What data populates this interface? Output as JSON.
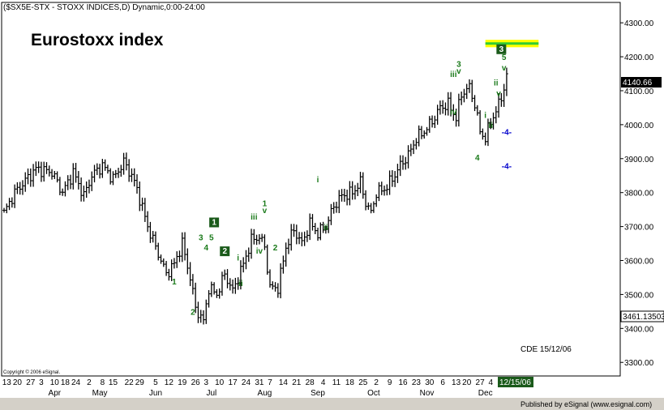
{
  "header": "($SX5E-STX - STOXX INDICES,D) Dynamic,0:00-24:00",
  "title": "Eurostoxx index",
  "annotation": "CDE 15/12/06",
  "copyright": "Copyright © 2006 eSignal.",
  "footer": "Published by eSignal (www.esignal.com)",
  "last_price_label": "4140.66",
  "cursor_price_label": "3461.13503",
  "current_date_label": "12/15/06",
  "colors": {
    "bars": "#000000",
    "wave": "#1a7a1a",
    "target": "#0000cc",
    "box": "#ffff00",
    "box_band": "#33cc33",
    "date_box": "#1a5a1a"
  },
  "chart_data": {
    "type": "ohlc",
    "ylim": [
      3260,
      4360
    ],
    "yticks": [
      3300,
      3400,
      3500,
      3600,
      3700,
      3800,
      3900,
      4000,
      4100,
      4200,
      4300
    ],
    "ytick_labels": [
      "3300.00",
      "3400.00",
      "3500.00",
      "3600.00",
      "3700.00",
      "3800.00",
      "3900.00",
      "4000.00",
      "4100.00",
      "4200.00",
      "4300.00"
    ],
    "bar_count": 190,
    "close_anchors": [
      [
        0,
        3740
      ],
      [
        4,
        3800
      ],
      [
        12,
        3870
      ],
      [
        18,
        3860
      ],
      [
        22,
        3800
      ],
      [
        26,
        3860
      ],
      [
        30,
        3790
      ],
      [
        33,
        3850
      ],
      [
        37,
        3880
      ],
      [
        41,
        3840
      ],
      [
        45,
        3890
      ],
      [
        48,
        3850
      ],
      [
        50,
        3810
      ],
      [
        54,
        3700
      ],
      [
        57,
        3640
      ],
      [
        61,
        3560
      ],
      [
        64,
        3590
      ],
      [
        67,
        3650
      ],
      [
        70,
        3550
      ],
      [
        72,
        3460
      ],
      [
        75,
        3420
      ],
      [
        77,
        3520
      ],
      [
        80,
        3500
      ],
      [
        83,
        3560
      ],
      [
        86,
        3510
      ],
      [
        90,
        3590
      ],
      [
        93,
        3660
      ],
      [
        96,
        3670
      ],
      [
        98,
        3640
      ],
      [
        100,
        3520
      ],
      [
        103,
        3520
      ],
      [
        106,
        3640
      ],
      [
        109,
        3690
      ],
      [
        112,
        3650
      ],
      [
        115,
        3710
      ],
      [
        118,
        3680
      ],
      [
        121,
        3700
      ],
      [
        124,
        3760
      ],
      [
        127,
        3790
      ],
      [
        131,
        3800
      ],
      [
        134,
        3830
      ],
      [
        136,
        3770
      ],
      [
        138,
        3740
      ],
      [
        140,
        3800
      ],
      [
        143,
        3810
      ],
      [
        146,
        3840
      ],
      [
        149,
        3880
      ],
      [
        152,
        3910
      ],
      [
        155,
        3960
      ],
      [
        158,
        3980
      ],
      [
        161,
        4010
      ],
      [
        164,
        4050
      ],
      [
        167,
        4060
      ],
      [
        170,
        4020
      ],
      [
        172,
        4090
      ],
      [
        175,
        4110
      ],
      [
        177,
        4060
      ],
      [
        179,
        3980
      ],
      [
        181,
        3960
      ],
      [
        183,
        4010
      ],
      [
        185,
        4040
      ],
      [
        187,
        4080
      ],
      [
        189,
        4140
      ]
    ],
    "x_tick_labels": [
      {
        "bar": 1,
        "label": "13"
      },
      {
        "bar": 5,
        "label": "20"
      },
      {
        "bar": 10,
        "label": "27"
      },
      {
        "bar": 14,
        "label": "3"
      },
      {
        "bar": 19,
        "label": "10"
      },
      {
        "bar": 23,
        "label": "18"
      },
      {
        "bar": 27,
        "label": "24"
      },
      {
        "bar": 32,
        "label": "2"
      },
      {
        "bar": 37,
        "label": "8"
      },
      {
        "bar": 41,
        "label": "15"
      },
      {
        "bar": 47,
        "label": "22"
      },
      {
        "bar": 51,
        "label": "29"
      },
      {
        "bar": 57,
        "label": "5"
      },
      {
        "bar": 62,
        "label": "12"
      },
      {
        "bar": 67,
        "label": "19"
      },
      {
        "bar": 72,
        "label": "26"
      },
      {
        "bar": 76,
        "label": "3"
      },
      {
        "bar": 81,
        "label": "10"
      },
      {
        "bar": 86,
        "label": "17"
      },
      {
        "bar": 91,
        "label": "24"
      },
      {
        "bar": 96,
        "label": "31"
      },
      {
        "bar": 100,
        "label": "7"
      },
      {
        "bar": 105,
        "label": "14"
      },
      {
        "bar": 110,
        "label": "21"
      },
      {
        "bar": 115,
        "label": "28"
      },
      {
        "bar": 120,
        "label": "4"
      },
      {
        "bar": 125,
        "label": "11"
      },
      {
        "bar": 130,
        "label": "18"
      },
      {
        "bar": 135,
        "label": "25"
      },
      {
        "bar": 140,
        "label": "2"
      },
      {
        "bar": 145,
        "label": "9"
      },
      {
        "bar": 150,
        "label": "16"
      },
      {
        "bar": 155,
        "label": "23"
      },
      {
        "bar": 160,
        "label": "30"
      },
      {
        "bar": 165,
        "label": "6"
      },
      {
        "bar": 170,
        "label": "13"
      },
      {
        "bar": 174,
        "label": "20"
      },
      {
        "bar": 179,
        "label": "27"
      },
      {
        "bar": 183,
        "label": "4"
      }
    ],
    "month_labels": [
      {
        "bar": 19,
        "label": "Apr"
      },
      {
        "bar": 36,
        "label": "May"
      },
      {
        "bar": 57,
        "label": "Jun"
      },
      {
        "bar": 78,
        "label": "Jul"
      },
      {
        "bar": 98,
        "label": "Aug"
      },
      {
        "bar": 118,
        "label": "Sep"
      },
      {
        "bar": 139,
        "label": "Oct"
      },
      {
        "bar": 159,
        "label": "Nov"
      },
      {
        "bar": 181,
        "label": "Dec"
      }
    ],
    "wave_labels": [
      {
        "bar": 64,
        "price": 3530,
        "text": "1"
      },
      {
        "bar": 71,
        "price": 3440,
        "text": "2"
      },
      {
        "bar": 74,
        "price": 3660,
        "text": "3"
      },
      {
        "bar": 76,
        "price": 3630,
        "text": "4"
      },
      {
        "bar": 78,
        "price": 3660,
        "text": "5"
      },
      {
        "bar": 79,
        "price": 3705,
        "text": "1",
        "boxed": true
      },
      {
        "bar": 83,
        "price": 3620,
        "text": "2",
        "boxed": true
      },
      {
        "bar": 88,
        "price": 3600,
        "text": "i"
      },
      {
        "bar": 89,
        "price": 3525,
        "text": "ii"
      },
      {
        "bar": 94,
        "price": 3720,
        "text": "iii"
      },
      {
        "bar": 96,
        "price": 3620,
        "text": "iv"
      },
      {
        "bar": 98,
        "price": 3760,
        "text": "1"
      },
      {
        "bar": 98,
        "price": 3740,
        "text": "v"
      },
      {
        "bar": 102,
        "price": 3630,
        "text": "2"
      },
      {
        "bar": 118,
        "price": 3830,
        "text": "i"
      },
      {
        "bar": 121,
        "price": 3690,
        "text": "ii"
      },
      {
        "bar": 169,
        "price": 4140,
        "text": "iii"
      },
      {
        "bar": 171,
        "price": 4170,
        "text": "3"
      },
      {
        "bar": 171,
        "price": 4150,
        "text": "v"
      },
      {
        "bar": 169,
        "price": 4030,
        "text": "iv"
      },
      {
        "bar": 178,
        "price": 3895,
        "text": "4"
      },
      {
        "bar": 181,
        "price": 4020,
        "text": "i"
      },
      {
        "bar": 183,
        "price": 3990,
        "text": "ii"
      },
      {
        "bar": 185,
        "price": 4115,
        "text": "ii"
      },
      {
        "bar": 186,
        "price": 4085,
        "text": "v"
      },
      {
        "bar": 188,
        "price": 4190,
        "text": "5"
      },
      {
        "bar": 188,
        "price": 4160,
        "text": "v"
      },
      {
        "bar": 187,
        "price": 4215,
        "text": "3",
        "boxed": true
      }
    ],
    "targets": [
      {
        "bar": 189,
        "price": 3970,
        "text": "-4-"
      },
      {
        "bar": 189,
        "price": 3870,
        "text": "-4-"
      }
    ],
    "target_box": {
      "from_bar": 181,
      "to_bar": 201,
      "price_low": 4228,
      "price_high": 4250
    }
  }
}
